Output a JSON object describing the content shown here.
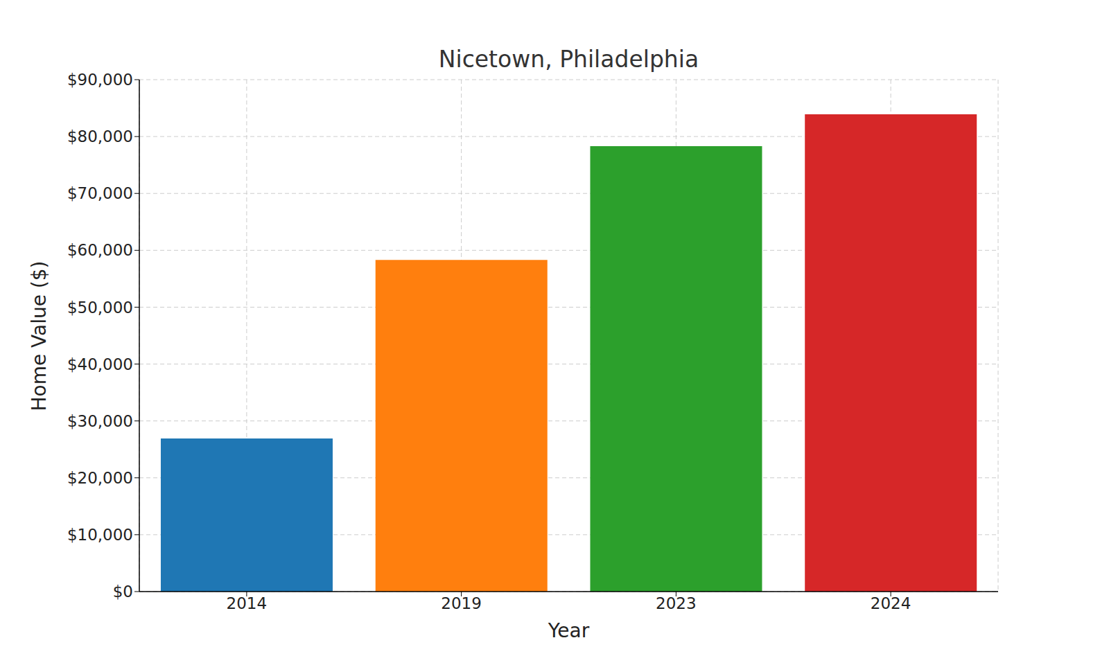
{
  "chart_data": {
    "type": "bar",
    "title": "Nicetown, Philadelphia",
    "x_label": "Year",
    "y_label": "Home Value ($)",
    "categories": [
      "2014",
      "2019",
      "2023",
      "2024"
    ],
    "values": [
      26900,
      58300,
      78300,
      83900
    ],
    "colors": [
      "#1f77b4",
      "#ff7f0e",
      "#2ca02c",
      "#d62728"
    ],
    "ylim": [
      0,
      90000
    ],
    "yticks": [
      {
        "value": 0,
        "label": "$0"
      },
      {
        "value": 10000,
        "label": "$10,000"
      },
      {
        "value": 20000,
        "label": "$20,000"
      },
      {
        "value": 30000,
        "label": "$30,000"
      },
      {
        "value": 40000,
        "label": "$40,000"
      },
      {
        "value": 50000,
        "label": "$50,000"
      },
      {
        "value": 60000,
        "label": "$60,000"
      },
      {
        "value": 70000,
        "label": "$70,000"
      },
      {
        "value": 80000,
        "label": "$80,000"
      },
      {
        "value": 90000,
        "label": "$90,000"
      }
    ],
    "grid": true
  }
}
